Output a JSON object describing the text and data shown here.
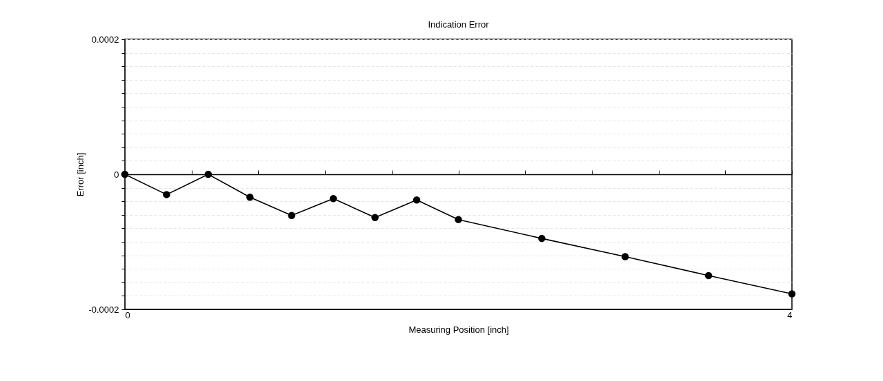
{
  "chart_data": {
    "type": "line",
    "title": "Indication Error",
    "xlabel": "Measuring Position [inch]",
    "ylabel": "Error [inch]",
    "x": [
      0,
      0.25,
      0.5,
      0.75,
      1.0,
      1.25,
      1.5,
      1.75,
      2.0,
      2.5,
      3.0,
      3.5,
      4.0
    ],
    "series": [
      {
        "color": "#000000",
        "values": [
          0,
          -3e-05,
          0,
          -3.4e-05,
          -6.1e-05,
          -3.6e-05,
          -6.4e-05,
          -3.8e-05,
          -6.7e-05,
          -9.5e-05,
          -0.000122,
          -0.00015,
          -0.000177
        ]
      }
    ],
    "xlim": [
      0,
      4
    ],
    "ylim": [
      -0.0002,
      0.0002
    ],
    "xticks": [
      0,
      {
        "value": 0.4,
        "label": null
      },
      {
        "value": 0.8,
        "label": null
      },
      {
        "value": 1.2,
        "label": null
      },
      {
        "value": 1.6,
        "label": null
      },
      {
        "value": 2.0,
        "label": null
      },
      {
        "value": 2.4,
        "label": null
      },
      {
        "value": 2.8,
        "label": null
      },
      {
        "value": 3.2,
        "label": null
      },
      {
        "value": 3.6,
        "label": null
      },
      4
    ],
    "yticks": [
      -0.0002,
      {
        "value": -0.00018,
        "label": null
      },
      {
        "value": -0.00016,
        "label": null
      },
      {
        "value": -0.00014,
        "label": null
      },
      {
        "value": -0.00012,
        "label": null
      },
      {
        "value": -0.0001,
        "label": null
      },
      {
        "value": -8e-05,
        "label": null
      },
      {
        "value": -6e-05,
        "label": null
      },
      {
        "value": -4e-05,
        "label": null
      },
      {
        "value": -2e-05,
        "label": null
      },
      0,
      {
        "value": 2e-05,
        "label": null
      },
      {
        "value": 4e-05,
        "label": null
      },
      {
        "value": 6e-05,
        "label": null
      },
      {
        "value": 8e-05,
        "label": null
      },
      {
        "value": 0.0001,
        "label": null
      },
      {
        "value": 0.00012,
        "label": null
      },
      {
        "value": 0.00014,
        "label": null
      },
      {
        "value": 0.00016,
        "label": null
      },
      {
        "value": 0.00018,
        "label": null
      },
      0.0002
    ],
    "grid": "y",
    "marker": "circle",
    "line_style": "solid"
  }
}
